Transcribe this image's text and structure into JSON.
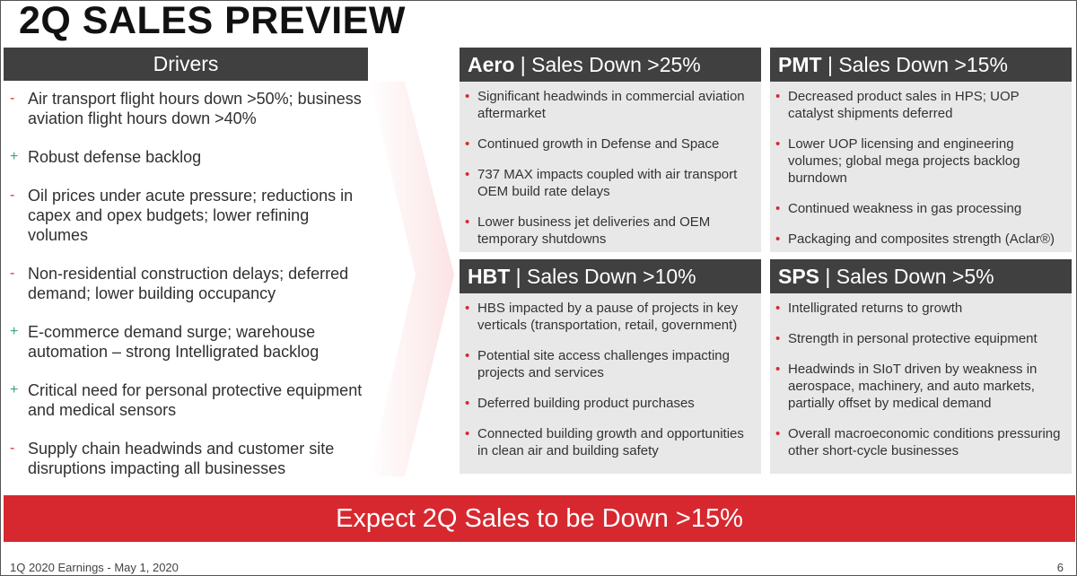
{
  "title": "2Q SALES PREVIEW",
  "drivers": {
    "header": "Drivers",
    "items": [
      {
        "mark": "-",
        "type": "minus",
        "text": "Air transport flight hours down >50%; business aviation flight hours down >40%"
      },
      {
        "mark": "+",
        "type": "plus",
        "text": "Robust defense backlog"
      },
      {
        "mark": "-",
        "type": "minus",
        "text": "Oil prices under acute pressure; reductions in capex and opex budgets; lower refining volumes"
      },
      {
        "mark": "-",
        "type": "minus",
        "text": "Non-residential construction delays; deferred demand; lower building occupancy"
      },
      {
        "mark": "+",
        "type": "plus",
        "text": "E-commerce demand surge; warehouse automation – strong Intelligrated backlog"
      },
      {
        "mark": "+",
        "type": "plus",
        "text": "Critical need for personal protective equipment and medical sensors"
      },
      {
        "mark": "-",
        "type": "minus",
        "text": "Supply chain headwinds and customer site disruptions impacting all businesses"
      }
    ]
  },
  "panels": [
    {
      "name": "Aero",
      "sep": " | ",
      "status": "Sales Down >25%",
      "items": [
        "Significant headwinds in commercial aviation aftermarket",
        "Continued growth in Defense and Space",
        "737 MAX impacts coupled with air transport OEM build rate delays",
        "Lower business jet deliveries and OEM temporary shutdowns"
      ]
    },
    {
      "name": "PMT",
      "sep": " | ",
      "status": "Sales Down >15%",
      "items": [
        "Decreased product sales in HPS; UOP catalyst shipments deferred",
        "Lower UOP licensing and engineering volumes; global mega projects backlog burndown",
        "Continued weakness in gas processing",
        "Packaging and composites strength (Aclar®)"
      ]
    },
    {
      "name": "HBT",
      "sep": " | ",
      "status": "Sales Down >10%",
      "items": [
        "HBS impacted by a pause of projects in key verticals (transportation, retail, government)",
        "Potential site access challenges impacting projects and services",
        "Deferred building product purchases",
        "Connected building growth and opportunities in clean air and building safety"
      ]
    },
    {
      "name": "SPS",
      "sep": " | ",
      "status": "Sales Down >5%",
      "items": [
        "Intelligrated returns to growth",
        "Strength in personal protective equipment",
        "Headwinds in SIoT driven by weakness in aerospace, machinery, and auto markets, partially offset by medical demand",
        "Overall macroeconomic conditions pressuring other short-cycle businesses"
      ]
    }
  ],
  "banner": "Expect 2Q Sales to be Down >15%",
  "footer": "1Q 2020 Earnings - May 1, 2020",
  "page_number": "6",
  "colors": {
    "accent": "#d7282f",
    "header": "#404040",
    "panel": "#e8e8e8",
    "plus": "#3fa08a"
  }
}
